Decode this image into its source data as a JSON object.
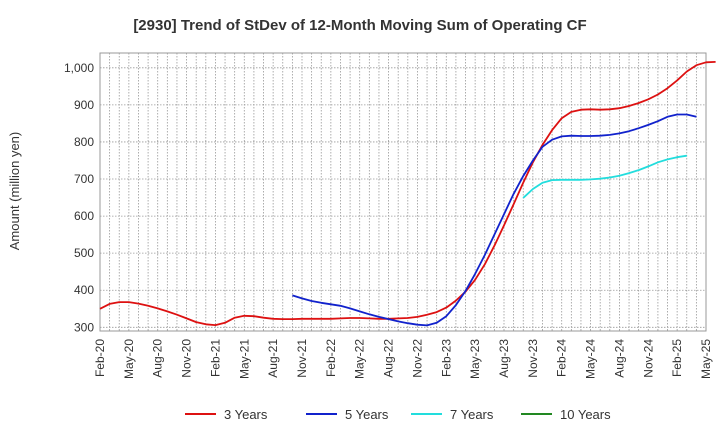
{
  "chart_data": {
    "type": "line",
    "title": "[2930]  Trend of StDev of 12-Month Moving Sum of Operating CF",
    "ylabel": "Amount (million yen)",
    "xlabel": "",
    "ylim": [
      290,
      1040
    ],
    "yticks": [
      300,
      400,
      500,
      600,
      700,
      800,
      900,
      1000
    ],
    "ytick_labels": [
      "300",
      "400",
      "500",
      "600",
      "700",
      "800",
      "900",
      "1,000"
    ],
    "x_tick_labels": [
      "Feb-20",
      "May-20",
      "Aug-20",
      "Nov-20",
      "Feb-21",
      "May-21",
      "Aug-21",
      "Nov-21",
      "Feb-22",
      "May-22",
      "Aug-22",
      "Nov-22",
      "Feb-23",
      "May-23",
      "Aug-23",
      "Nov-23",
      "Feb-24",
      "May-24",
      "Aug-24",
      "Nov-24",
      "Feb-25",
      "May-25"
    ],
    "x_start": "Feb-20",
    "x_end": "May-25",
    "grid": true,
    "legend_position": "bottom",
    "series": [
      {
        "name": "3 Years",
        "color": "#dd1111",
        "start": "Feb-20",
        "values": [
          350,
          363,
          368,
          368,
          364,
          358,
          351,
          343,
          334,
          324,
          314,
          308,
          306,
          312,
          326,
          331,
          330,
          326,
          323,
          322,
          322,
          323,
          323,
          323,
          323,
          324,
          325,
          325,
          324,
          323,
          323,
          324,
          325,
          328,
          334,
          341,
          353,
          372,
          396,
          428,
          470,
          520,
          575,
          632,
          690,
          745,
          792,
          832,
          864,
          881,
          887,
          888,
          887,
          888,
          891,
          897,
          905,
          915,
          928,
          945,
          966,
          990,
          1007,
          1015,
          1016
        ]
      },
      {
        "name": "5 Years",
        "color": "#1122cc",
        "start": "Oct-21",
        "values": [
          386,
          378,
          371,
          366,
          362,
          358,
          351,
          343,
          335,
          328,
          322,
          316,
          311,
          307,
          305,
          312,
          330,
          360,
          398,
          444,
          495,
          550,
          605,
          660,
          708,
          750,
          787,
          806,
          815,
          817,
          816,
          816,
          817,
          819,
          823,
          829,
          837,
          846,
          856,
          868,
          874,
          874,
          868
        ]
      },
      {
        "name": "7 Years",
        "color": "#22dddd",
        "start": "Oct-23",
        "values": [
          649,
          673,
          690,
          697,
          698,
          698,
          698,
          699,
          701,
          704,
          709,
          716,
          724,
          734,
          745,
          753,
          759,
          763
        ]
      },
      {
        "name": "10 Years",
        "color": "#228822",
        "start": "Oct-23",
        "values": []
      }
    ]
  }
}
